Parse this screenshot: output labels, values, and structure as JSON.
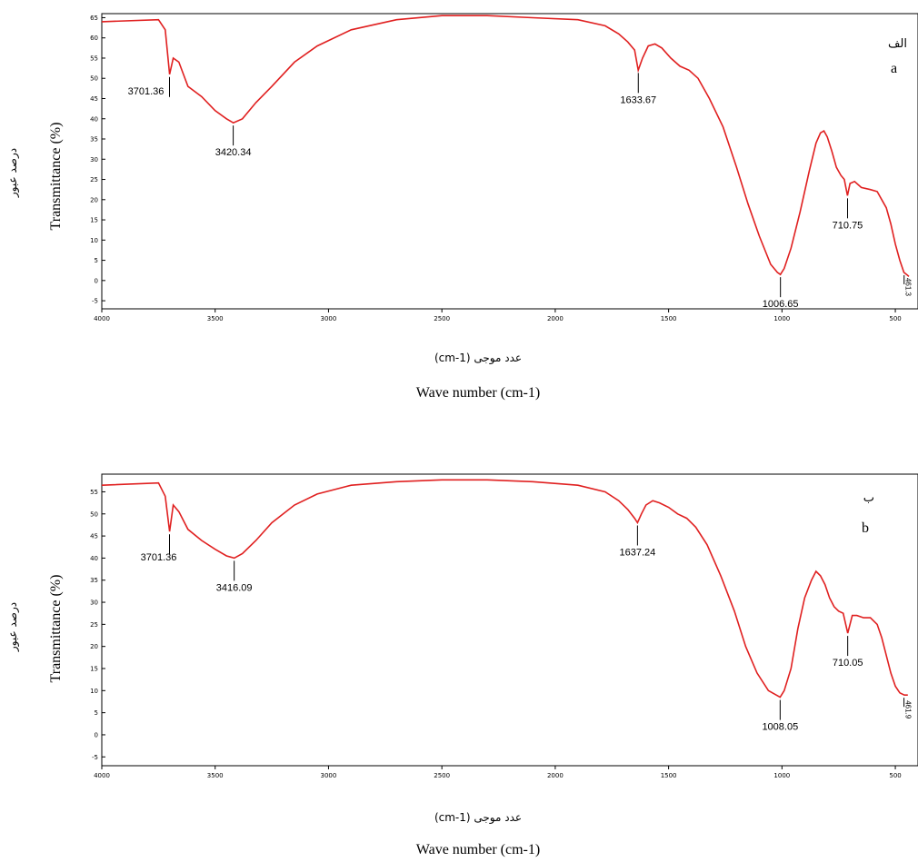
{
  "chart_data": [
    {
      "type": "line",
      "panel_label_fa": "الف",
      "panel_label": "a",
      "ylabel": "Transmittance (%)",
      "ylabel_fa": "درصد عبور",
      "xlabel": "Wave number (cm-1)",
      "xlabel_fa": "(cm-1)  عدد موجی",
      "xlim": [
        4000,
        400
      ],
      "ylim": [
        -7,
        66
      ],
      "x_ticks": [
        "4000",
        "3500",
        "3000",
        "2500",
        "2000",
        "1500",
        "1000",
        "500"
      ],
      "y_ticks": [
        "65",
        "60",
        "55",
        "50",
        "45",
        "40",
        "35",
        "30",
        "25",
        "20",
        "15",
        "10",
        "5",
        "0",
        "-5"
      ],
      "series_color": "#e02020",
      "series": [
        {
          "x": [
            4000,
            3750,
            3720,
            3701,
            3685,
            3660,
            3620,
            3560,
            3500,
            3450,
            3420,
            3380,
            3320,
            3250,
            3150,
            3050,
            2900,
            2700,
            2500,
            2300,
            2100,
            1900,
            1780,
            1720,
            1680,
            1650,
            1634,
            1615,
            1590,
            1560,
            1530,
            1490,
            1450,
            1410,
            1370,
            1320,
            1260,
            1200,
            1150,
            1100,
            1050,
            1020,
            1007,
            990,
            960,
            920,
            880,
            850,
            830,
            815,
            800,
            780,
            760,
            740,
            725,
            711,
            700,
            680,
            650,
            610,
            580,
            560,
            540,
            520,
            500,
            480,
            462,
            450,
            440
          ],
          "y": [
            64,
            64.5,
            62,
            51,
            55,
            54,
            48,
            45.5,
            42,
            40,
            39,
            40,
            44,
            48,
            54,
            58,
            62,
            64.5,
            65.5,
            65.5,
            65,
            64.5,
            63,
            61,
            59,
            57,
            52,
            55,
            58,
            58.5,
            57.5,
            55,
            53,
            52,
            50,
            45,
            38,
            28,
            19,
            11,
            4,
            2,
            1.5,
            3,
            8,
            17,
            27,
            34,
            36.5,
            37,
            35.5,
            32,
            28,
            26,
            25,
            21,
            24,
            24.5,
            23,
            22.5,
            22,
            20,
            18,
            14,
            9,
            5,
            2,
            1.5,
            1
          ]
        }
      ],
      "peaks": [
        {
          "label": "3701.36",
          "x": 3701.36,
          "y": 51
        },
        {
          "label": "3420.34",
          "x": 3420.34,
          "y": 39
        },
        {
          "label": "1633.67",
          "x": 1633.67,
          "y": 52
        },
        {
          "label": "1006.65",
          "x": 1006.65,
          "y": 1.5
        },
        {
          "label": "710.75",
          "x": 710.75,
          "y": 21
        },
        {
          "label": "461.3",
          "x": 461.3,
          "y": 2
        }
      ]
    },
    {
      "type": "line",
      "panel_label_fa": "ب",
      "panel_label": "b",
      "ylabel": "Transmittance (%)",
      "ylabel_fa": "درصد عبور",
      "xlabel": "Wave number (cm-1)",
      "xlabel_fa": "(cm-1)  عدد موجی",
      "xlim": [
        4000,
        400
      ],
      "ylim": [
        -7,
        59
      ],
      "x_ticks": [
        "4000",
        "3500",
        "3000",
        "2500",
        "2000",
        "1500",
        "1000",
        "500"
      ],
      "y_ticks": [
        "55",
        "50",
        "45",
        "40",
        "35",
        "30",
        "25",
        "20",
        "15",
        "10",
        "5",
        "0",
        "-5"
      ],
      "series_color": "#e02020",
      "series": [
        {
          "x": [
            4000,
            3750,
            3720,
            3701,
            3685,
            3660,
            3620,
            3560,
            3500,
            3450,
            3416,
            3380,
            3320,
            3250,
            3150,
            3050,
            2900,
            2700,
            2500,
            2300,
            2100,
            1900,
            1780,
            1720,
            1680,
            1650,
            1637,
            1620,
            1600,
            1570,
            1540,
            1500,
            1460,
            1420,
            1380,
            1330,
            1270,
            1210,
            1160,
            1110,
            1060,
            1025,
            1008,
            990,
            960,
            930,
            900,
            870,
            850,
            830,
            810,
            790,
            770,
            750,
            730,
            710,
            690,
            670,
            640,
            610,
            580,
            560,
            540,
            520,
            500,
            480,
            460,
            445
          ],
          "y": [
            56.5,
            57,
            54,
            46,
            52,
            50.5,
            46.5,
            44,
            42,
            40.5,
            40,
            41,
            44,
            48,
            52,
            54.5,
            56.5,
            57.3,
            57.7,
            57.7,
            57.3,
            56.5,
            55,
            53,
            51,
            49,
            48,
            50,
            52,
            53,
            52.5,
            51.5,
            50,
            49,
            47,
            43,
            36,
            28,
            20,
            14,
            10,
            9,
            8.5,
            10,
            15,
            24,
            31,
            35,
            37,
            36,
            34,
            31,
            29,
            28,
            27.5,
            23,
            27,
            27,
            26.5,
            26.5,
            25,
            22,
            18,
            14,
            11,
            9.5,
            9,
            9
          ]
        }
      ],
      "peaks": [
        {
          "label": "3701.36",
          "x": 3701.36,
          "y": 46
        },
        {
          "label": "3416.09",
          "x": 3416.09,
          "y": 40
        },
        {
          "label": "1637.24",
          "x": 1637.24,
          "y": 48
        },
        {
          "label": "1008.05",
          "x": 1008.05,
          "y": 8.5
        },
        {
          "label": "710.05",
          "x": 710.05,
          "y": 23
        },
        {
          "label": "461.9",
          "x": 461.9,
          "y": 9
        }
      ]
    }
  ]
}
